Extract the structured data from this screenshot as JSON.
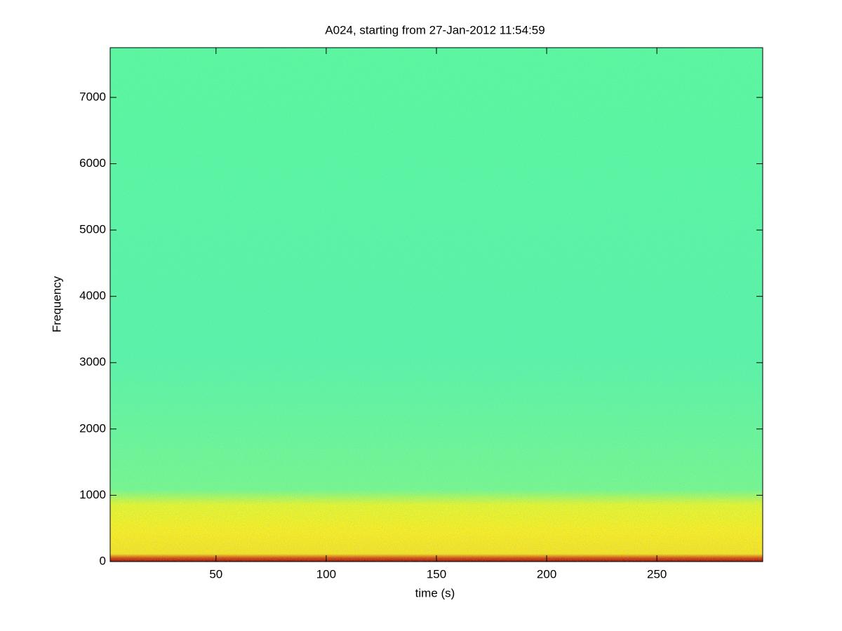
{
  "chart_data": {
    "type": "spectrogram",
    "title": "A024, starting from 27-Jan-2012 11:54:59",
    "xlabel": "time (s)",
    "ylabel": "Frequency",
    "xlim": [
      2,
      298
    ],
    "xticks": [
      50,
      100,
      150,
      200,
      250
    ],
    "ylim": [
      0,
      7750
    ],
    "yticks": [
      0,
      1000,
      2000,
      3000,
      4000,
      5000,
      6000,
      7000
    ]
  }
}
